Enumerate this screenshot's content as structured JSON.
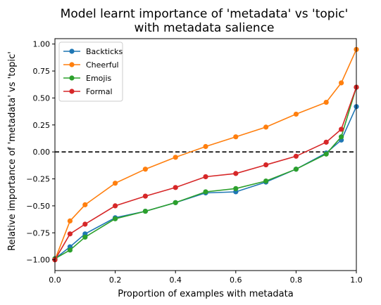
{
  "chart_data": {
    "type": "line",
    "title_lines": [
      "Model learnt importance of 'metadata' vs 'topic'",
      "with metadata salience"
    ],
    "xlabel": "Proportion of examples with metadata",
    "ylabel": "Relative importance of 'metadata' vs 'topic'",
    "xlim": [
      0.0,
      1.0
    ],
    "ylim": [
      -1.1,
      1.05
    ],
    "xticks": [
      0.0,
      0.2,
      0.4,
      0.6,
      0.8,
      1.0
    ],
    "xtick_labels": [
      "0.0",
      "0.2",
      "0.4",
      "0.6",
      "0.8",
      "1.0"
    ],
    "yticks": [
      -1.0,
      -0.75,
      -0.5,
      -0.25,
      0.0,
      0.25,
      0.5,
      0.75,
      1.0
    ],
    "ytick_labels": [
      "−1.00",
      "−0.75",
      "−0.50",
      "−0.25",
      "0.00",
      "0.25",
      "0.50",
      "0.75",
      "1.00"
    ],
    "grid": false,
    "legend_position": "upper-left",
    "reference_line": {
      "y": 0.0,
      "style": "dashed",
      "color": "#000000"
    },
    "x": [
      0.0,
      0.05,
      0.1,
      0.2,
      0.3,
      0.4,
      0.5,
      0.6,
      0.7,
      0.8,
      0.9,
      0.95,
      1.0
    ],
    "series": [
      {
        "name": "Backticks",
        "color": "#1f77b4",
        "values": [
          -0.99,
          -0.88,
          -0.76,
          -0.61,
          -0.55,
          -0.47,
          -0.38,
          -0.37,
          -0.28,
          -0.16,
          -0.01,
          0.11,
          0.42
        ]
      },
      {
        "name": "Cheerful",
        "color": "#ff7f0e",
        "values": [
          -1.0,
          -0.64,
          -0.49,
          -0.29,
          -0.16,
          -0.05,
          0.05,
          0.14,
          0.23,
          0.35,
          0.46,
          0.64,
          0.95
        ]
      },
      {
        "name": "Emojis",
        "color": "#2ca02c",
        "values": [
          -0.99,
          -0.91,
          -0.79,
          -0.62,
          -0.55,
          -0.47,
          -0.37,
          -0.34,
          -0.27,
          -0.16,
          -0.02,
          0.14,
          0.6
        ]
      },
      {
        "name": "Formal",
        "color": "#d62728",
        "values": [
          -1.0,
          -0.76,
          -0.67,
          -0.5,
          -0.41,
          -0.33,
          -0.23,
          -0.2,
          -0.12,
          -0.04,
          0.09,
          0.21,
          0.6
        ]
      }
    ]
  }
}
